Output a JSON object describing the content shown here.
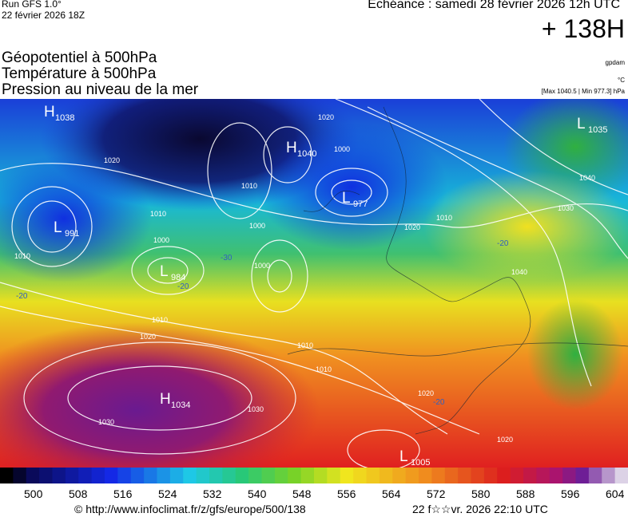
{
  "header": {
    "run": "Run GFS 1.0°",
    "run_date": "22 février 2026 18Z",
    "valid": "Echéance : samedi 28 février 2026 12h UTC",
    "lead": "+ 138H",
    "fields": [
      "Géopotentiel à 500hPa",
      "Température à 500hPa",
      "Pression au niveau de la mer"
    ],
    "unit_geopotential": "gpdam",
    "unit_temperature": "°C",
    "pressure_range": "[Max 1040.5 | Min 977.3] hPa"
  },
  "map": {
    "centers": [
      {
        "type": "H",
        "value": "1038"
      },
      {
        "type": "H",
        "value": "1040"
      },
      {
        "type": "L",
        "value": "977"
      },
      {
        "type": "L",
        "value": "991"
      },
      {
        "type": "L",
        "value": "984"
      },
      {
        "type": "H",
        "value": "1034"
      },
      {
        "type": "L",
        "value": "1035"
      },
      {
        "type": "L",
        "value": "1005"
      }
    ],
    "isobar_labels": [
      "1020",
      "1010",
      "1000",
      "1010",
      "1000",
      "1000",
      "1010",
      "1020",
      "1030",
      "1030",
      "1010",
      "1010",
      "1020",
      "1000",
      "1010",
      "1020",
      "1010",
      "1040",
      "1030",
      "1040",
      "1020",
      "1020"
    ],
    "temperature_labels": [
      "-30",
      "-20",
      "-20",
      "-20",
      "-20"
    ]
  },
  "legend": {
    "ticks": [
      500,
      508,
      516,
      524,
      532,
      540,
      548,
      556,
      564,
      572,
      580,
      588,
      596,
      604
    ]
  },
  "footer": {
    "source": "© http://www.infoclimat.fr/z/gfs/europe/500/138",
    "generated": "22 f☆☆vr. 2026 22:10 UTC"
  }
}
